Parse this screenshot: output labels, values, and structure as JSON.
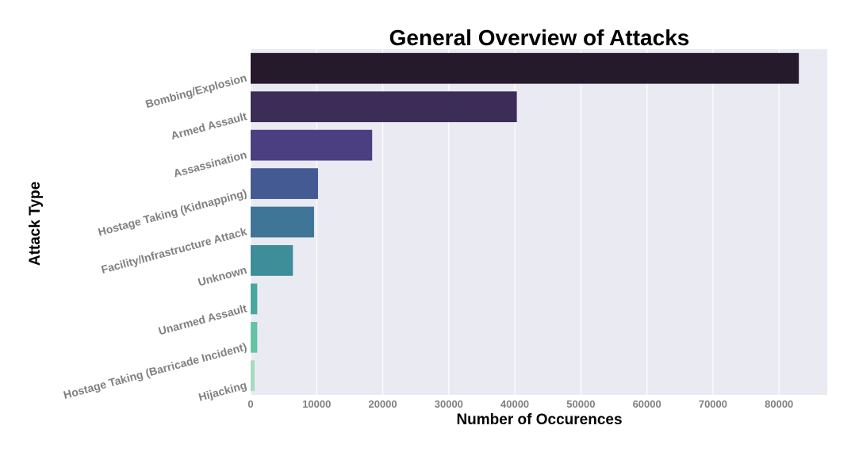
{
  "chart_data": {
    "type": "bar",
    "orientation": "horizontal",
    "title": "General Overview of Attacks",
    "xlabel": "Number of Occurences",
    "ylabel": "Attack Type",
    "categories": [
      "Bombing/Explosion",
      "Armed Assault",
      "Assassination",
      "Hostage Taking (Kidnapping)",
      "Facility/Infrastructure Attack",
      "Unknown",
      "Unarmed Assault",
      "Hostage Taking (Barricade Incident)",
      "Hijacking"
    ],
    "values": [
      83000,
      40300,
      18400,
      10200,
      9600,
      6400,
      1000,
      1000,
      600
    ],
    "colors": [
      "#241a2b",
      "#3b2d58",
      "#4b3f82",
      "#435a93",
      "#3f7597",
      "#3e8e9a",
      "#48a8a0",
      "#66c2a5",
      "#a5dbc0"
    ],
    "xlim": [
      0,
      87300
    ],
    "xticks": [
      0,
      10000,
      20000,
      30000,
      40000,
      50000,
      60000,
      70000,
      80000
    ],
    "background": "#eaeaf2",
    "grid": true
  }
}
